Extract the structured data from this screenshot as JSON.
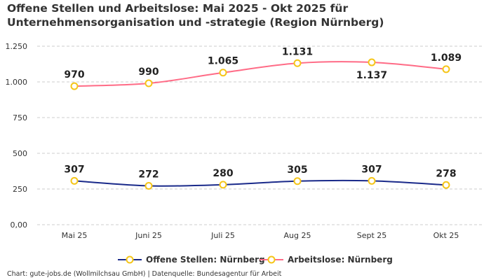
{
  "title": "Offene Stellen und Arbeitslose: Mai 2025 - Okt 2025 für Unternehmensorganisation und -strategie (Region Nürnberg)",
  "footer": "Chart: gute-jobs.de (Wollmilchsau GmbH) | Datenquelle: Bundesagentur für Arbeit",
  "chart_data": {
    "type": "line",
    "title": "Offene Stellen und Arbeitslose: Mai 2025 - Okt 2025 für Unternehmensorganisation und -strategie (Region Nürnberg)",
    "categories": [
      "Mai 25",
      "Juni 25",
      "Juli 25",
      "Aug 25",
      "Sept 25",
      "Okt 25"
    ],
    "series": [
      {
        "name": "Offene Stellen: Nürnberg",
        "values": [
          307,
          272,
          280,
          305,
          307,
          278
        ],
        "labels": [
          "307",
          "272",
          "280",
          "305",
          "307",
          "278"
        ],
        "color": "#1a2a8a"
      },
      {
        "name": "Arbeitslose: Nürnberg",
        "values": [
          970,
          990,
          1065,
          1131,
          1137,
          1089
        ],
        "labels": [
          "970",
          "990",
          "1.065",
          "1.131",
          "1.137",
          "1.089"
        ],
        "color": "#ff6b86"
      }
    ],
    "marker_color": "#f5c518",
    "ylim": [
      0,
      1250
    ],
    "yticks": [
      0,
      250,
      500,
      750,
      1000,
      1250
    ],
    "ytick_labels": [
      "0,00",
      "250",
      "500",
      "750",
      "1.000",
      "1.250"
    ],
    "grid": true,
    "legend": "bottom"
  }
}
